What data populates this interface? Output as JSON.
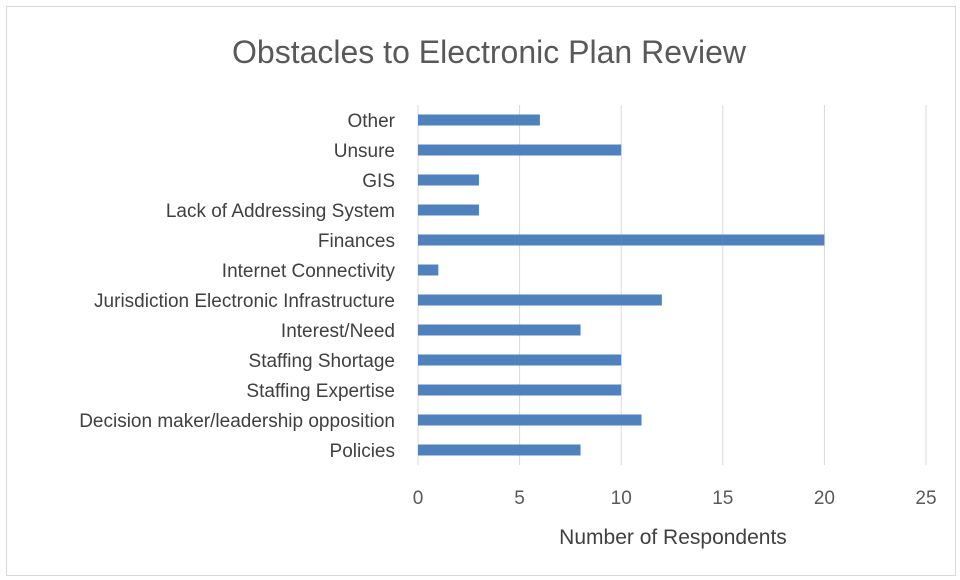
{
  "chart_data": {
    "type": "bar",
    "orientation": "horizontal",
    "title": "Obstacles to Electronic Plan Review",
    "xlabel": "Number of Respondents",
    "ylabel": "",
    "categories": [
      "Other",
      "Unsure",
      "GIS",
      "Lack of Addressing System",
      "Finances",
      "Internet Connectivity",
      "Jurisdiction Electronic Infrastructure",
      "Interest/Need",
      "Staffing Shortage",
      "Staffing Expertise",
      "Decision maker/leadership opposition",
      "Policies"
    ],
    "values": [
      6,
      10,
      3,
      3,
      20,
      1,
      12,
      8,
      10,
      10,
      11,
      8
    ],
    "xlim": [
      0,
      25
    ],
    "xticks": [
      0,
      5,
      10,
      15,
      20,
      25
    ],
    "grid": "vertical",
    "legend": "none",
    "bar_color": "#4f81bd"
  }
}
